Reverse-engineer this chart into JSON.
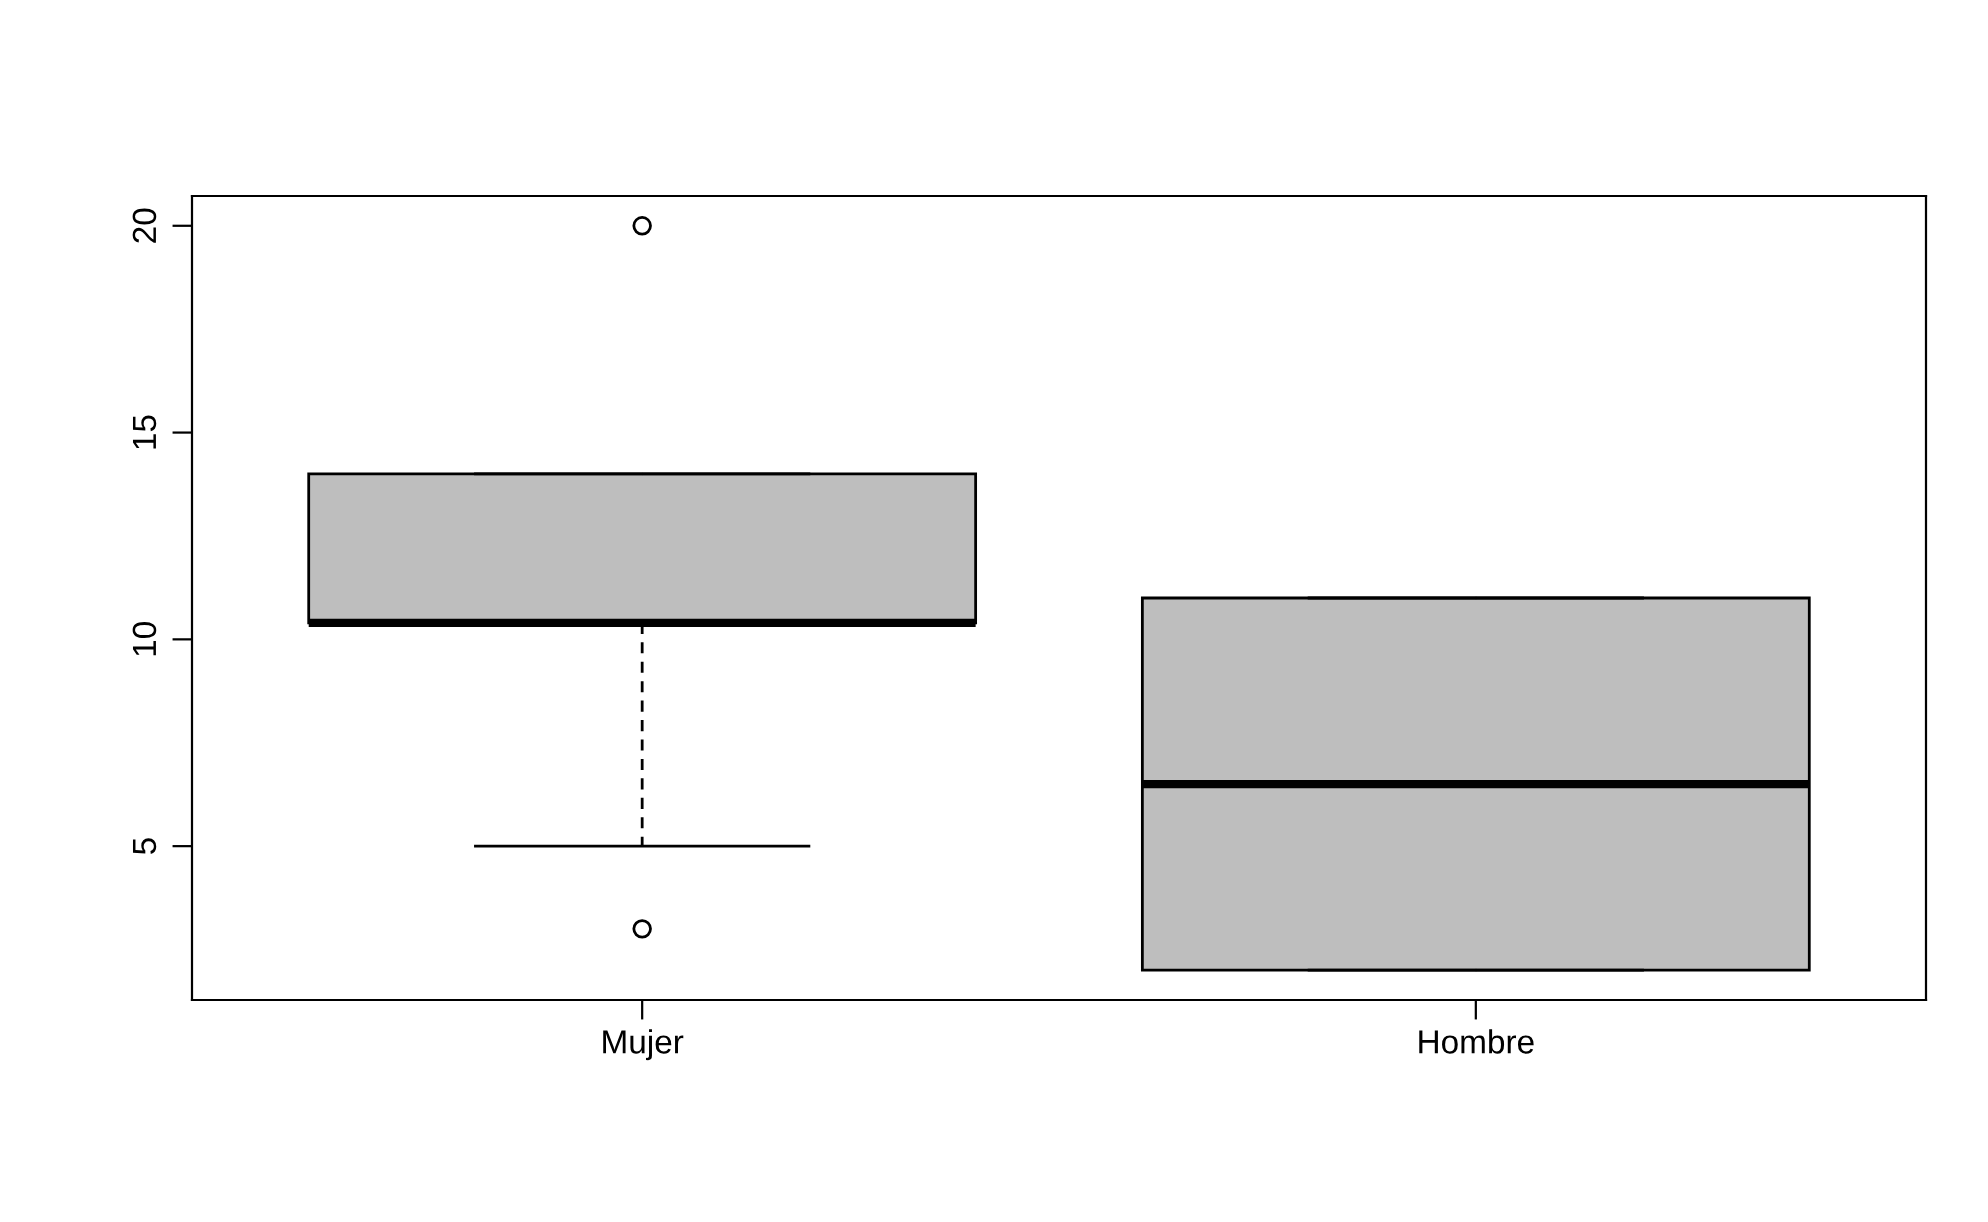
{
  "chart_data": {
    "type": "box",
    "categories": [
      "Mujer",
      "Hombre"
    ],
    "boxes": [
      {
        "low": 5,
        "q1": 10.4,
        "median": 10.4,
        "q3": 14,
        "high": 14,
        "outliers": [
          20,
          3
        ]
      },
      {
        "low": 2,
        "q1": 2,
        "median": 6.5,
        "q3": 11,
        "high": 11
      }
    ],
    "color": "#bebebe",
    "ylim": [
      1.28,
      20.72
    ],
    "yticks": [
      5,
      10,
      15,
      20
    ],
    "grid": false
  }
}
